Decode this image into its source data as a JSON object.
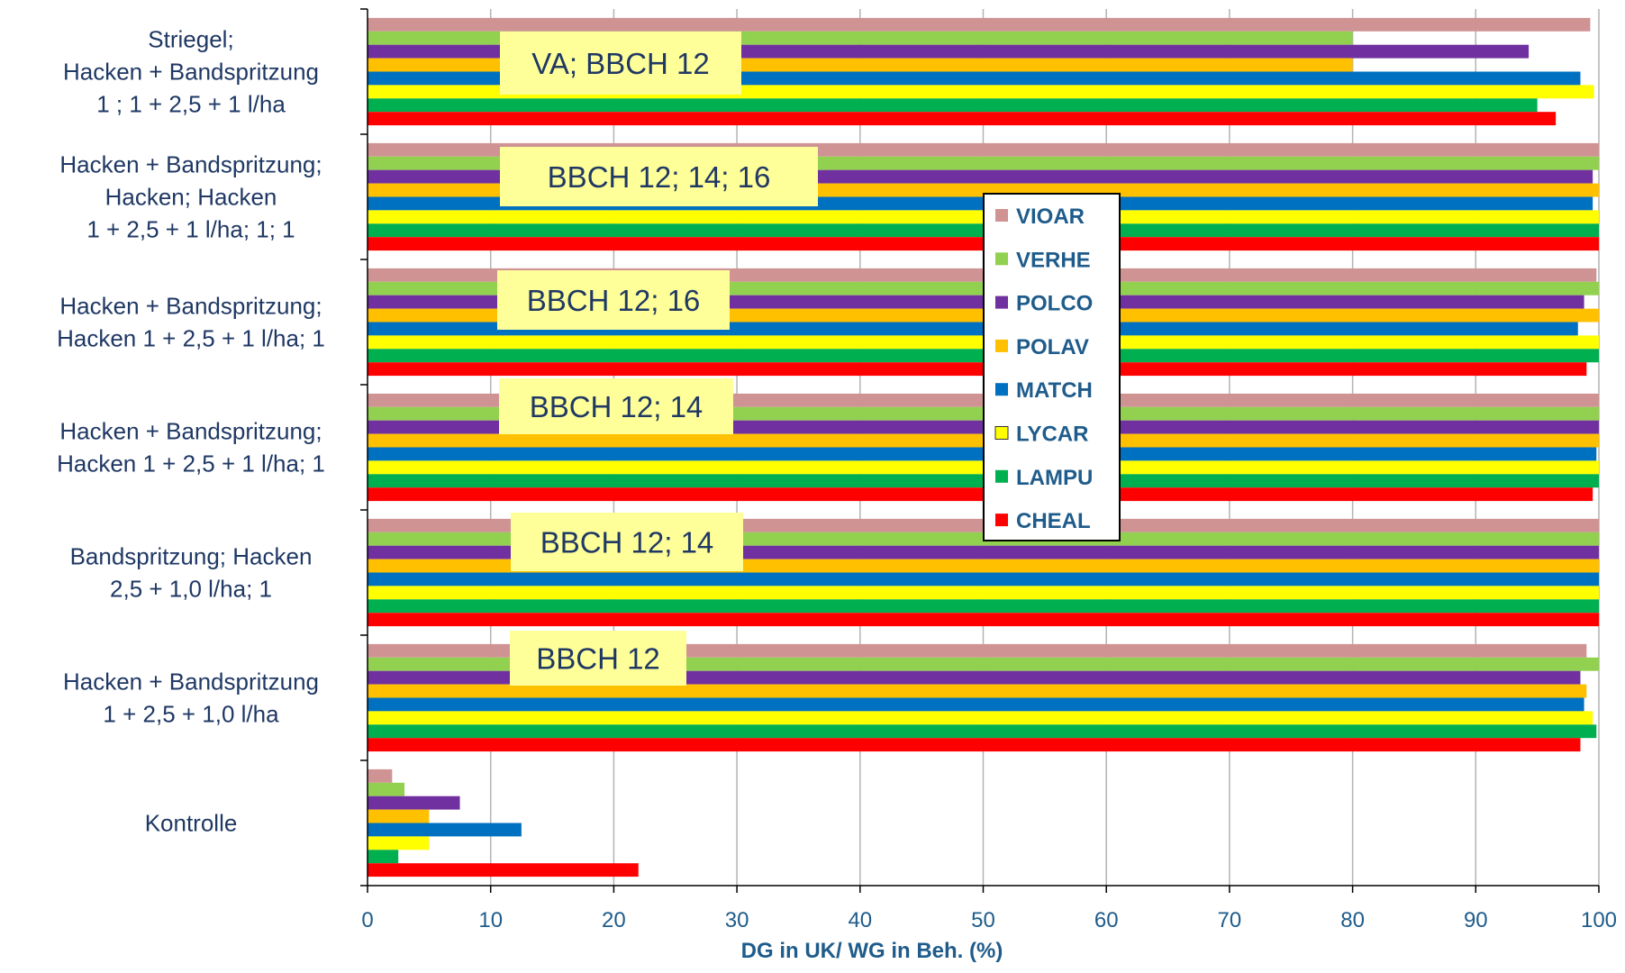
{
  "chart_data": {
    "type": "bar",
    "orientation": "horizontal",
    "xlabel": "DG in UK/ WG in Beh. (%)",
    "xlim": [
      0,
      100
    ],
    "xticks": [
      0,
      10,
      20,
      30,
      40,
      50,
      60,
      70,
      80,
      90,
      100
    ],
    "grid": "vertical",
    "legend_position": "center",
    "categories": [
      [
        "Striegel;",
        "Hacken + Bandspritzung",
        "1 ; 1 + 2,5 + 1 l/ha"
      ],
      [
        "Hacken + Bandspritzung;",
        "Hacken; Hacken",
        "1 + 2,5 + 1 l/ha; 1; 1"
      ],
      [
        "Hacken + Bandspritzung;",
        "Hacken 1 + 2,5 + 1 l/ha; 1"
      ],
      [
        "Hacken + Bandspritzung;",
        "Hacken 1 + 2,5 + 1 l/ha; 1"
      ],
      [
        "Bandspritzung; Hacken",
        "2,5 + 1,0 l/ha; 1"
      ],
      [
        "Hacken + Bandspritzung",
        "1 + 2,5 + 1,0 l/ha"
      ],
      [
        "Kontrolle"
      ]
    ],
    "annotations": [
      "VA; BBCH 12",
      "BBCH 12; 14; 16",
      "BBCH 12; 16",
      "BBCH 12; 14",
      "BBCH 12; 14",
      "BBCH 12",
      ""
    ],
    "series": [
      {
        "name": "VIOAR",
        "color": "#d09393",
        "values": [
          99.3,
          100,
          99.8,
          100,
          100,
          99,
          2
        ]
      },
      {
        "name": "VERHE",
        "color": "#92d050",
        "values": [
          80,
          100,
          100,
          100,
          100,
          100,
          3
        ]
      },
      {
        "name": "POLCO",
        "color": "#7030a0",
        "values": [
          94.3,
          99.5,
          98.8,
          100,
          100,
          98.5,
          7.5
        ]
      },
      {
        "name": "POLAV",
        "color": "#ffc000",
        "values": [
          80,
          100,
          100,
          100,
          100,
          99,
          5
        ]
      },
      {
        "name": "MATCH",
        "color": "#0070c0",
        "values": [
          98.5,
          99.5,
          98.3,
          99.8,
          100,
          98.8,
          12.5
        ]
      },
      {
        "name": "LYCAR",
        "color": "#ffff00",
        "values": [
          99.6,
          100,
          100,
          100,
          100,
          99.5,
          5
        ]
      },
      {
        "name": "LAMPU",
        "color": "#00b050",
        "values": [
          95,
          100,
          100,
          100,
          100,
          99.8,
          2.5
        ]
      },
      {
        "name": "CHEAL",
        "color": "#ff0000",
        "values": [
          96.5,
          100,
          99,
          99.5,
          100,
          98.5,
          22
        ]
      }
    ]
  }
}
